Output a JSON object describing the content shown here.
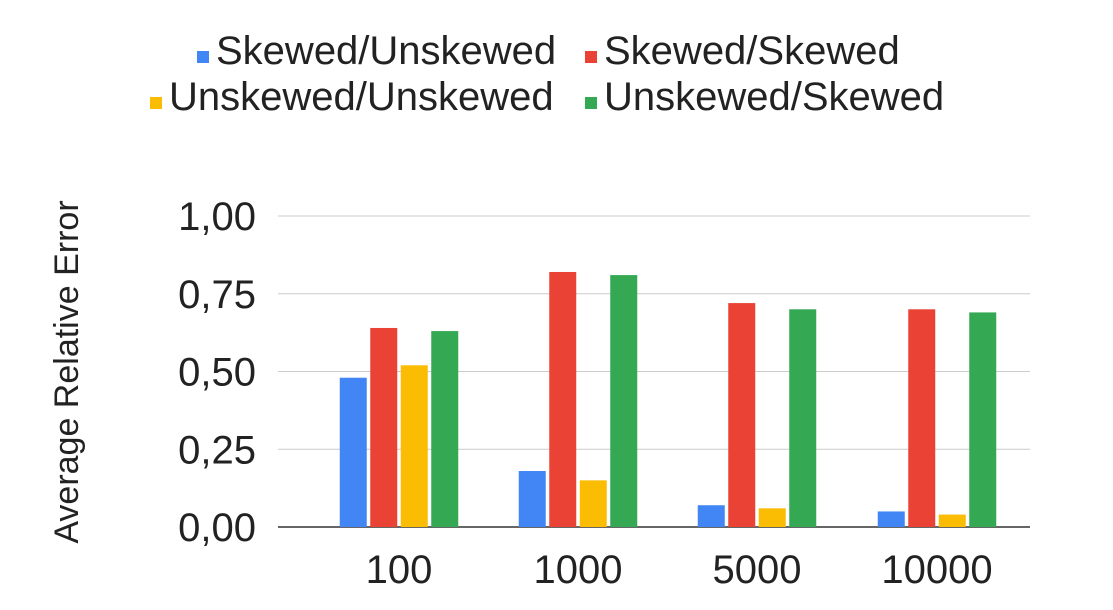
{
  "chart_data": {
    "type": "bar",
    "title": "",
    "xlabel": "",
    "ylabel": "Average Relative Error",
    "categories": [
      "100",
      "1000",
      "5000",
      "10000"
    ],
    "series": [
      {
        "name": "Skewed/Unskewed",
        "color": "#4285F4",
        "values": [
          0.48,
          0.18,
          0.07,
          0.05
        ]
      },
      {
        "name": "Skewed/Skewed",
        "color": "#EA4335",
        "values": [
          0.64,
          0.82,
          0.72,
          0.7
        ]
      },
      {
        "name": "Unskewed/Unskewed",
        "color": "#FBBC04",
        "values": [
          0.52,
          0.15,
          0.06,
          0.04
        ]
      },
      {
        "name": "Unskewed/Skewed",
        "color": "#34A853",
        "values": [
          0.63,
          0.81,
          0.7,
          0.69
        ]
      }
    ],
    "ylim": [
      0,
      1
    ],
    "yticks": [
      "0,00",
      "0,25",
      "0,50",
      "0,75",
      "1,00"
    ],
    "grid": true,
    "legend_position": "top"
  }
}
